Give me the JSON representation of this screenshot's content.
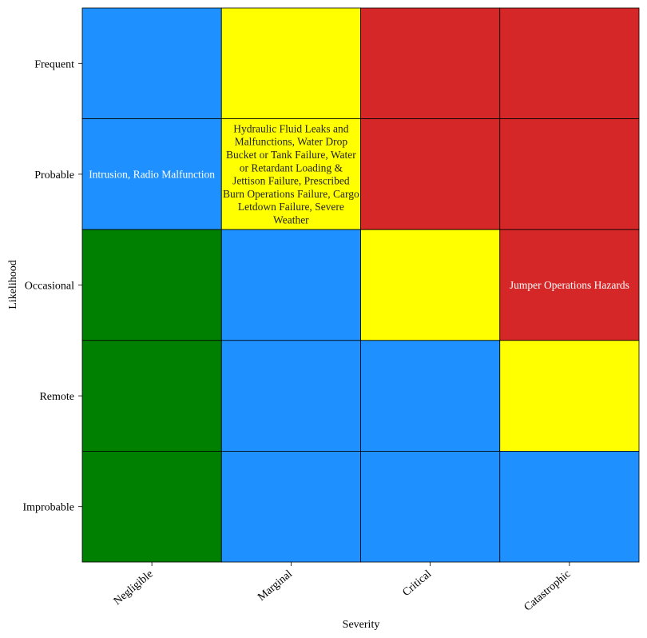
{
  "chart_data": {
    "type": "heatmap",
    "xlabel": "Severity",
    "ylabel": "Likelihood",
    "columns": [
      "Negligible",
      "Marginal",
      "Critical",
      "Catastrophic"
    ],
    "rows": [
      "Frequent",
      "Probable",
      "Occasional",
      "Remote",
      "Improbable"
    ],
    "colors": {
      "low": "#008000",
      "medium": "#1e90ff",
      "serious": "#ffff00",
      "high": "#d62728"
    },
    "risk_levels": [
      [
        "medium",
        "serious",
        "high",
        "high"
      ],
      [
        "medium",
        "serious",
        "high",
        "high"
      ],
      [
        "low",
        "medium",
        "serious",
        "high"
      ],
      [
        "low",
        "medium",
        "medium",
        "serious"
      ],
      [
        "low",
        "medium",
        "medium",
        "medium"
      ]
    ],
    "cell_labels": [
      [
        "",
        "",
        "",
        ""
      ],
      [
        "Intrusion,  Radio Malfunction",
        "Hydraulic Fluid Leaks and Malfunctions,  Water Drop Bucket or Tank Failure,  Water or Retardant Loading & Jettison Failure,  Prescribed Burn Operations Failure,  Cargo Letdown Failure,  Severe Weather",
        "",
        ""
      ],
      [
        "",
        "",
        "",
        "Jumper Operations Hazards"
      ],
      [
        "",
        "",
        "",
        ""
      ],
      [
        "",
        "",
        "",
        ""
      ]
    ]
  }
}
